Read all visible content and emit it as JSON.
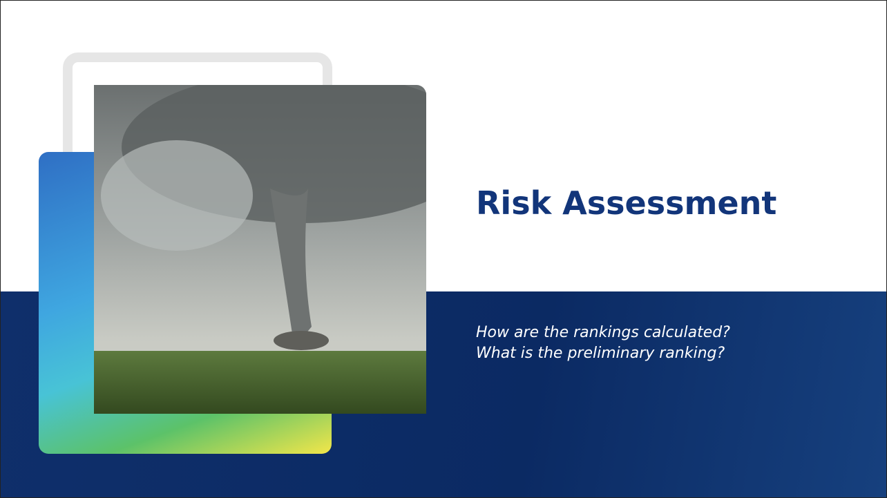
{
  "slide": {
    "title": "Risk Assessment",
    "subtitle_lines": [
      "How are the rankings calculated?",
      "What is the preliminary ranking?"
    ]
  }
}
